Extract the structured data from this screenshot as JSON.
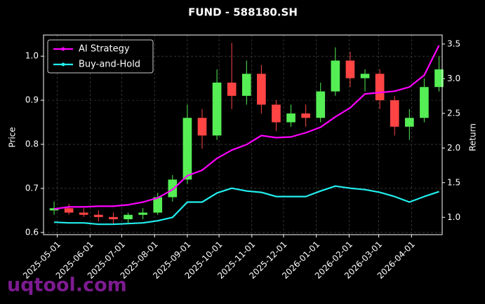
{
  "chart_data": {
    "type": "candlestick",
    "title": "FUND - 588180.SH",
    "ylabel": "Price",
    "y2label": "Return",
    "watermark": "uqtool.com",
    "x": [
      "2025-04-28",
      "2025-05-12",
      "2025-05-26",
      "2025-06-09",
      "2025-06-23",
      "2025-07-07",
      "2025-07-21",
      "2025-08-04",
      "2025-08-18",
      "2025-09-01",
      "2025-09-15",
      "2025-09-29",
      "2025-10-13",
      "2025-10-27",
      "2025-11-10",
      "2025-11-24",
      "2025-12-08",
      "2025-12-22",
      "2026-01-05",
      "2026-01-19",
      "2026-02-02",
      "2026-02-16",
      "2026-03-02",
      "2026-03-16",
      "2026-03-30",
      "2026-04-13",
      "2026-04-27"
    ],
    "open": [
      0.65,
      0.655,
      0.645,
      0.64,
      0.635,
      0.63,
      0.64,
      0.645,
      0.68,
      0.72,
      0.86,
      0.82,
      0.94,
      0.91,
      0.96,
      0.89,
      0.85,
      0.87,
      0.86,
      0.92,
      0.99,
      0.95,
      0.96,
      0.9,
      0.84,
      0.86,
      0.93
    ],
    "high": [
      0.67,
      0.665,
      0.655,
      0.65,
      0.645,
      0.645,
      0.655,
      0.69,
      0.73,
      0.89,
      0.88,
      0.97,
      1.03,
      0.99,
      0.98,
      0.9,
      0.89,
      0.89,
      0.94,
      1.02,
      1.01,
      0.97,
      0.97,
      0.91,
      0.88,
      0.95,
      1.0
    ],
    "low": [
      0.64,
      0.64,
      0.635,
      0.625,
      0.62,
      0.62,
      0.63,
      0.64,
      0.67,
      0.71,
      0.79,
      0.81,
      0.88,
      0.89,
      0.87,
      0.83,
      0.84,
      0.84,
      0.85,
      0.91,
      0.93,
      0.92,
      0.88,
      0.82,
      0.81,
      0.85,
      0.92
    ],
    "close": [
      0.655,
      0.645,
      0.64,
      0.635,
      0.63,
      0.64,
      0.645,
      0.68,
      0.72,
      0.86,
      0.82,
      0.94,
      0.91,
      0.96,
      0.89,
      0.85,
      0.87,
      0.86,
      0.92,
      0.99,
      0.95,
      0.96,
      0.9,
      0.84,
      0.86,
      0.93,
      0.97
    ],
    "up_color": "#55ee55",
    "down_color": "#ff4444",
    "series": [
      {
        "name": "AI Strategy",
        "color": "#ff00ff",
        "axis": "y2",
        "values": [
          1.12,
          1.15,
          1.15,
          1.16,
          1.16,
          1.18,
          1.22,
          1.28,
          1.4,
          1.6,
          1.68,
          1.85,
          1.97,
          2.05,
          2.18,
          2.15,
          2.16,
          2.22,
          2.3,
          2.45,
          2.58,
          2.78,
          2.8,
          2.82,
          2.88,
          3.05,
          3.48
        ]
      },
      {
        "name": "Buy-and-Hold",
        "color": "#22eeee",
        "axis": "y2",
        "values": [
          0.93,
          0.92,
          0.92,
          0.9,
          0.9,
          0.91,
          0.92,
          0.95,
          1.0,
          1.22,
          1.22,
          1.35,
          1.42,
          1.38,
          1.36,
          1.3,
          1.3,
          1.3,
          1.38,
          1.45,
          1.42,
          1.4,
          1.36,
          1.3,
          1.22,
          1.3,
          1.37
        ]
      }
    ],
    "xlim": [
      "2025-04-18",
      "2026-04-30"
    ],
    "xticks": [
      "2025-05-01",
      "2025-06-01",
      "2025-07-01",
      "2025-08-01",
      "2025-09-01",
      "2025-10-01",
      "2025-11-01",
      "2025-12-01",
      "2026-01-01",
      "2026-02-01",
      "2026-03-01",
      "2026-04-01"
    ],
    "ylim": [
      0.595,
      1.048
    ],
    "yticks": [
      0.6,
      0.7,
      0.8,
      0.9,
      {
        "value": 1.0,
        "label": "1.0"
      }
    ],
    "y2lim": [
      0.75,
      3.63
    ],
    "y2ticks": [
      {
        "value": 1.0,
        "label": "1.0"
      },
      1.5,
      {
        "value": 2.0,
        "label": "2.0"
      },
      2.5,
      {
        "value": 3.0,
        "label": "3.0"
      },
      3.5
    ],
    "grid": true,
    "legend": "upper left"
  }
}
